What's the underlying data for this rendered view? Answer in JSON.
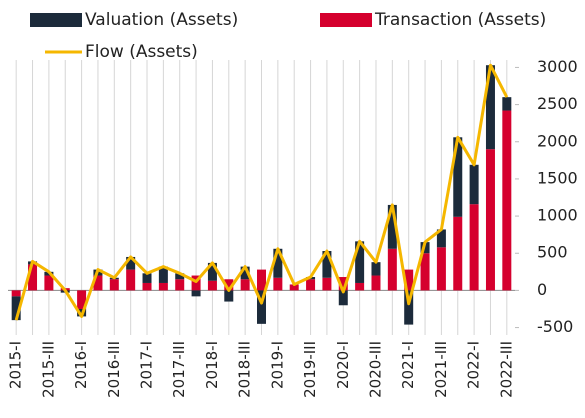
{
  "chart_data": {
    "type": "bar",
    "stacked": true,
    "categories": [
      "2015-I",
      null,
      "2015-III",
      null,
      "2016-I",
      null,
      "2016-III",
      null,
      "2017-I",
      null,
      "2017-III",
      null,
      "2018-I",
      null,
      "2018-III",
      null,
      "2019-I",
      null,
      "2019-III",
      null,
      "2020-I",
      null,
      "2020-III",
      null,
      "2021-I",
      null,
      "2021-III",
      null,
      "2022-I",
      null,
      "2022-III"
    ],
    "series": [
      {
        "name": "Valuation (Assets)",
        "color": "#1c2b3b",
        "type": "bar",
        "values": [
          -320,
          40,
          50,
          -30,
          -100,
          80,
          20,
          170,
          130,
          220,
          80,
          -80,
          240,
          -150,
          170,
          -450,
          390,
          0,
          30,
          360,
          -200,
          560,
          180,
          590,
          -460,
          150,
          240,
          1070,
          530,
          1130,
          180
        ]
      },
      {
        "name": "Transaction (Assets)",
        "color": "#d5002e",
        "type": "bar",
        "values": [
          -80,
          350,
          200,
          30,
          -250,
          200,
          150,
          280,
          100,
          100,
          150,
          200,
          130,
          150,
          150,
          280,
          170,
          80,
          150,
          170,
          180,
          100,
          200,
          560,
          280,
          500,
          580,
          990,
          1160,
          1900,
          2420
        ]
      },
      {
        "name": "Flow (Assets)",
        "color": "#f5b700",
        "type": "line",
        "values": [
          -400,
          390,
          250,
          0,
          -350,
          280,
          170,
          450,
          230,
          320,
          230,
          120,
          370,
          0,
          320,
          -170,
          560,
          80,
          180,
          530,
          -20,
          660,
          380,
          1150,
          -180,
          650,
          820,
          2060,
          1690,
          3030,
          2600
        ]
      }
    ],
    "ylim": [
      -600,
      3100
    ],
    "yticks": [
      {
        "value": -500,
        "label": "-500"
      },
      0,
      500,
      1000,
      1500,
      2000,
      2500,
      3000
    ],
    "y_axis_side": "right"
  }
}
